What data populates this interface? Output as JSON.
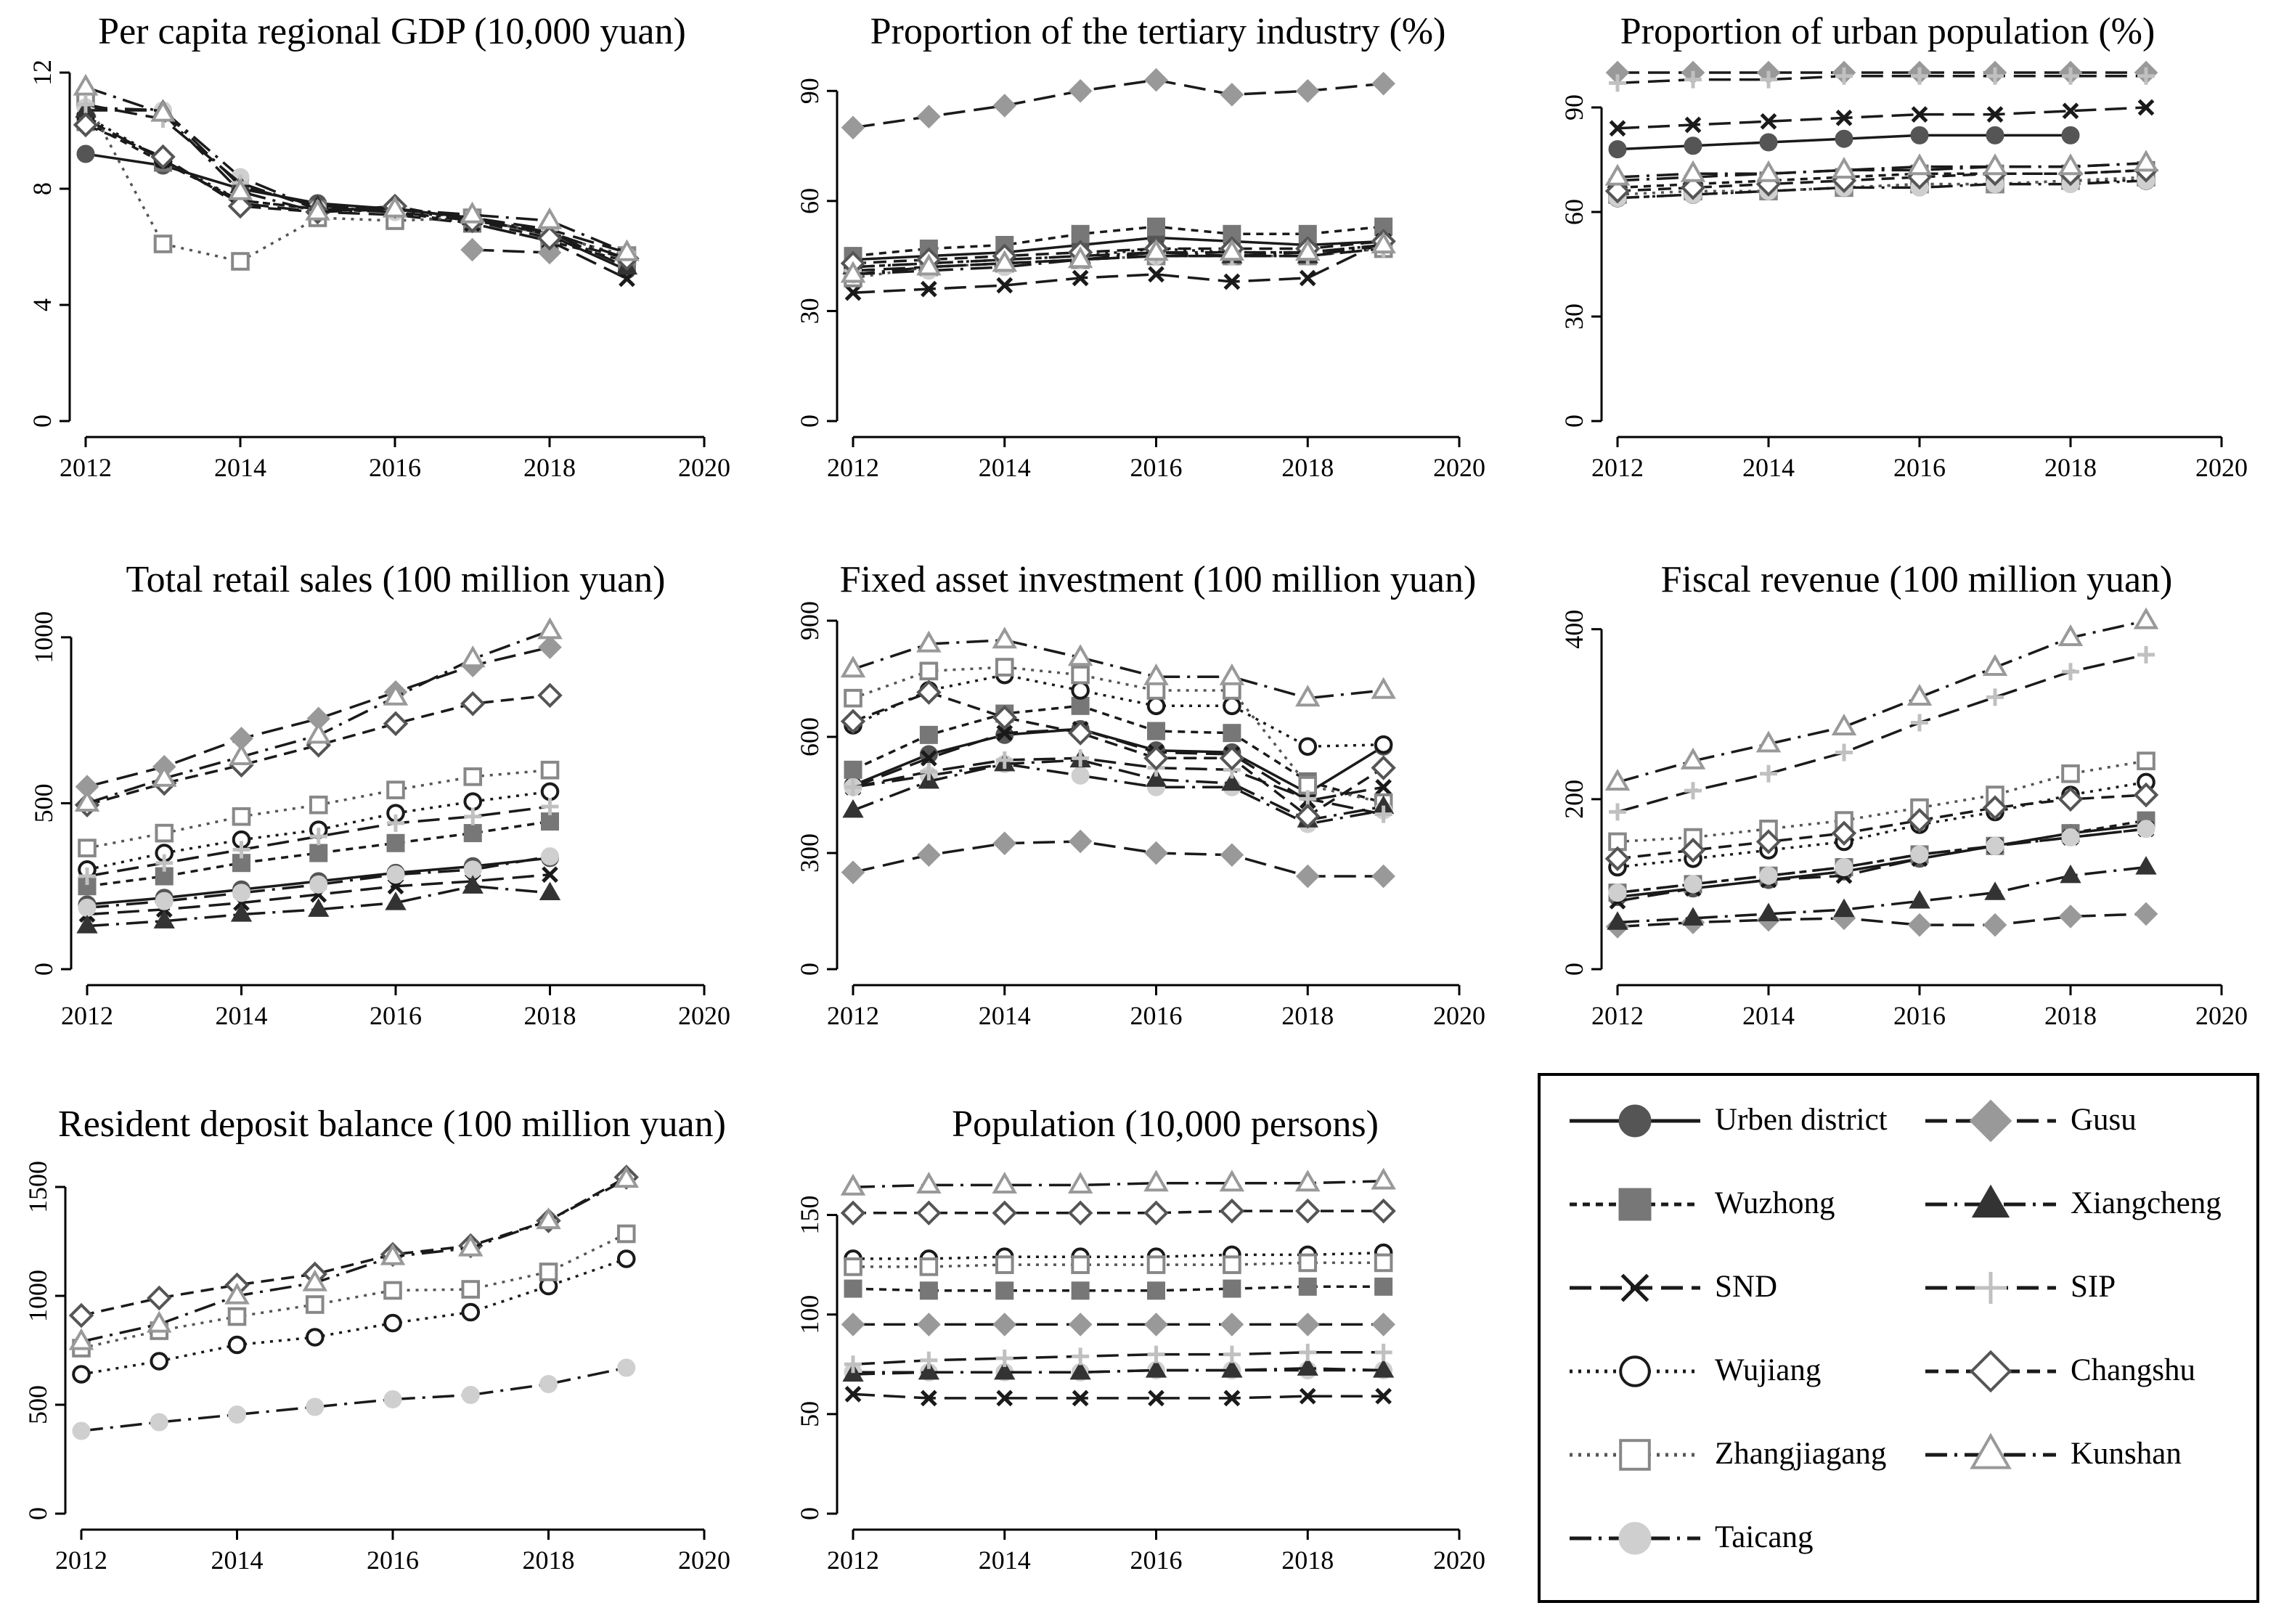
{
  "colors": {
    "black": "#1a1a1a",
    "dark_gray": "#555555",
    "mid_gray": "#777777",
    "light_gray": "#999999",
    "pale_gray": "#cfcfcf"
  },
  "series": [
    {
      "key": "urban",
      "name": "Urben district",
      "marker": "circle-filled",
      "dash": "solid",
      "color": "#555555",
      "line": "#1a1a1a"
    },
    {
      "key": "wuzhong",
      "name": "Wuzhong",
      "marker": "square-filled",
      "dash": "short-dash",
      "color": "#777777",
      "line": "#1a1a1a"
    },
    {
      "key": "snd",
      "name": "SND",
      "marker": "x",
      "dash": "long-dash",
      "color": "#1a1a1a",
      "line": "#1a1a1a"
    },
    {
      "key": "wujiang",
      "name": "Wujiang",
      "marker": "circle-hollow",
      "dash": "dotted",
      "color": "#1a1a1a",
      "line": "#1a1a1a"
    },
    {
      "key": "zhangjiagang",
      "name": "Zhangjiagang",
      "marker": "square-hollow",
      "dash": "dotted",
      "color": "#888888",
      "line": "#555555"
    },
    {
      "key": "taicang",
      "name": "Taicang",
      "marker": "circle-filled",
      "dash": "long-dash-dot",
      "color": "#cfcfcf",
      "line": "#1a1a1a"
    },
    {
      "key": "gusu",
      "name": "Gusu",
      "marker": "diamond-filled",
      "dash": "long-dash",
      "color": "#999999",
      "line": "#1a1a1a"
    },
    {
      "key": "xiangcheng",
      "name": "Xiangcheng",
      "marker": "triangle-filled",
      "dash": "long-dash-dot",
      "color": "#333333",
      "line": "#1a1a1a"
    },
    {
      "key": "sip",
      "name": "SIP",
      "marker": "plus",
      "dash": "long-dash",
      "color": "#c0c0c0",
      "line": "#1a1a1a"
    },
    {
      "key": "changshu",
      "name": "Changshu",
      "marker": "diamond-hollow",
      "dash": "dash",
      "color": "#555555",
      "line": "#1a1a1a"
    },
    {
      "key": "kunshan",
      "name": "Kunshan",
      "marker": "triangle-hollow",
      "dash": "long-dash-dot",
      "color": "#999999",
      "line": "#1a1a1a"
    }
  ],
  "chart_data": [
    {
      "type": "line",
      "title": "Per capita regional GDP (10,000 yuan)",
      "xlim": [
        2012,
        2020
      ],
      "ylim": [
        0,
        12
      ],
      "xticks": [
        2012,
        2014,
        2016,
        2018,
        2020
      ],
      "yticks": [
        0,
        4,
        8,
        12
      ],
      "x": [
        2012,
        2013,
        2014,
        2015,
        2016,
        2017,
        2018,
        2019
      ],
      "series": {
        "urban": [
          9.2,
          8.8,
          8.0,
          7.5,
          7.3,
          7.0,
          6.4,
          5.2
        ],
        "wuzhong": [
          10.3,
          8.9,
          7.6,
          7.3,
          7.2,
          6.8,
          6.2,
          5.5
        ],
        "snd": [
          10.4,
          9.0,
          7.5,
          7.2,
          7.1,
          6.8,
          6.2,
          4.9
        ],
        "wujiang": [
          10.5,
          9.0,
          7.6,
          7.3,
          7.3,
          6.9,
          6.5,
          5.6
        ],
        "zhangjiagang": [
          11.1,
          6.1,
          5.5,
          7.0,
          6.9,
          7.0,
          6.4,
          5.7
        ],
        "taicang": [
          10.8,
          10.7,
          8.4,
          7.3,
          7.2,
          6.9,
          6.5,
          5.6
        ],
        "gusu": [
          null,
          null,
          null,
          null,
          null,
          5.9,
          5.8,
          null
        ],
        "xiangcheng": [
          10.7,
          10.7,
          8.1,
          7.4,
          7.3,
          7.0,
          6.5,
          5.3
        ],
        "sip": [
          10.9,
          10.4,
          8.2,
          7.3,
          7.3,
          7.0,
          6.6,
          5.8
        ],
        "changshu": [
          10.2,
          9.1,
          7.4,
          7.2,
          7.4,
          6.9,
          6.3,
          5.6
        ],
        "kunshan": [
          11.5,
          10.6,
          7.9,
          7.2,
          7.3,
          7.1,
          6.9,
          5.8
        ]
      }
    },
    {
      "type": "line",
      "title": "Proportion of the tertiary industry (%)",
      "xlim": [
        2012,
        2020
      ],
      "ylim": [
        0,
        95
      ],
      "xticks": [
        2012,
        2014,
        2016,
        2018,
        2020
      ],
      "yticks": [
        0,
        30,
        60,
        90
      ],
      "x": [
        2012,
        2013,
        2014,
        2015,
        2016,
        2017,
        2018,
        2019
      ],
      "series": {
        "urban": [
          44,
          45,
          46,
          48,
          50,
          49,
          48,
          49
        ],
        "wuzhong": [
          45,
          47,
          48,
          51,
          53,
          51,
          51,
          53
        ],
        "snd": [
          35,
          36,
          37,
          39,
          40,
          38,
          39,
          49
        ],
        "wujiang": [
          42,
          43,
          44,
          45,
          47,
          46,
          46,
          48
        ],
        "zhangjiagang": [
          39,
          42,
          43,
          44,
          45,
          45,
          45,
          47
        ],
        "taicang": [
          40,
          41,
          42,
          44,
          45,
          45,
          46,
          48
        ],
        "gusu": [
          80,
          83,
          86,
          90,
          93,
          89,
          90,
          92
        ],
        "xiangcheng": [
          42,
          43,
          44,
          45,
          46,
          45,
          45,
          48
        ],
        "sip": [
          41,
          42,
          43,
          44,
          45,
          45,
          45,
          47
        ],
        "changshu": [
          43,
          44,
          45,
          46,
          47,
          47,
          47,
          49
        ],
        "kunshan": [
          40,
          42,
          43,
          44,
          46,
          46,
          46,
          48
        ]
      }
    },
    {
      "type": "line",
      "title": "Proportion of urban population (%)",
      "xlim": [
        2012,
        2020
      ],
      "ylim": [
        0,
        100
      ],
      "xticks": [
        2012,
        2014,
        2016,
        2018,
        2020
      ],
      "yticks": [
        0,
        30,
        60,
        90
      ],
      "x": [
        2012,
        2013,
        2014,
        2015,
        2016,
        2017,
        2018,
        2019
      ],
      "series": {
        "urban": [
          78,
          79,
          80,
          81,
          82,
          82,
          82,
          null
        ],
        "wuzhong": [
          67,
          68,
          69,
          70,
          71,
          71,
          71,
          72
        ],
        "snd": [
          84,
          85,
          86,
          87,
          88,
          88,
          89,
          90
        ],
        "wujiang": [
          64,
          65,
          66,
          67,
          68,
          68,
          69,
          69
        ],
        "zhangjiagang": [
          65,
          66,
          66,
          67,
          68,
          68,
          69,
          70
        ],
        "taicang": [
          64,
          65,
          66,
          67,
          67,
          68,
          68,
          69
        ],
        "gusu": [
          100,
          100,
          100,
          100,
          100,
          100,
          100,
          100
        ],
        "xiangcheng": [
          69,
          70,
          71,
          72,
          72,
          73,
          73,
          74
        ],
        "sip": [
          97,
          98,
          98,
          99,
          99,
          99,
          99,
          99
        ],
        "changshu": [
          66,
          67,
          68,
          69,
          70,
          71,
          71,
          72
        ],
        "kunshan": [
          70,
          71,
          71,
          72,
          73,
          73,
          73,
          74
        ]
      }
    },
    {
      "type": "line",
      "title": "Total retail sales (100 million yuan)",
      "xlim": [
        2012,
        2020
      ],
      "ylim": [
        0,
        1050
      ],
      "xticks": [
        2012,
        2014,
        2016,
        2018,
        2020
      ],
      "yticks": [
        0,
        500,
        1000
      ],
      "x": [
        2012,
        2013,
        2014,
        2015,
        2016,
        2017,
        2018
      ],
      "series": {
        "urban": [
          195,
          215,
          240,
          265,
          290,
          310,
          335
        ],
        "wuzhong": [
          250,
          280,
          320,
          350,
          380,
          410,
          445
        ],
        "snd": [
          165,
          180,
          200,
          225,
          250,
          265,
          285
        ],
        "wujiang": [
          300,
          350,
          390,
          420,
          470,
          505,
          535
        ],
        "zhangjiagang": [
          365,
          410,
          460,
          495,
          540,
          580,
          600
        ],
        "taicang": [
          185,
          205,
          230,
          255,
          285,
          300,
          340
        ],
        "gusu": [
          550,
          610,
          695,
          755,
          835,
          915,
          970
        ],
        "xiangcheng": [
          130,
          145,
          165,
          180,
          200,
          250,
          230
        ],
        "sip": [
          280,
          320,
          360,
          400,
          440,
          460,
          490
        ],
        "changshu": [
          495,
          560,
          615,
          675,
          740,
          800,
          825
        ],
        "kunshan": [
          500,
          575,
          640,
          705,
          820,
          935,
          1020
        ]
      }
    },
    {
      "type": "line",
      "title": "Fixed asset investment (100 million yuan)",
      "xlim": [
        2012,
        2020
      ],
      "ylim": [
        0,
        900
      ],
      "xticks": [
        2012,
        2014,
        2016,
        2018,
        2020
      ],
      "yticks": [
        0,
        300,
        600,
        900
      ],
      "x": [
        2012,
        2013,
        2014,
        2015,
        2016,
        2017,
        2018,
        2019
      ],
      "series": {
        "urban": [
          475,
          555,
          605,
          620,
          565,
          560,
          455,
          575
        ],
        "wuzhong": [
          515,
          605,
          660,
          680,
          615,
          610,
          485,
          430
        ],
        "snd": [
          470,
          545,
          610,
          620,
          560,
          555,
          435,
          470
        ],
        "wujiang": [
          630,
          720,
          760,
          720,
          680,
          680,
          575,
          580
        ],
        "zhangjiagang": [
          700,
          770,
          780,
          760,
          720,
          720,
          475,
          430
        ],
        "taicang": [
          470,
          500,
          530,
          500,
          470,
          470,
          375,
          410
        ],
        "gusu": [
          250,
          295,
          325,
          330,
          300,
          295,
          240,
          240
        ],
        "xiangcheng": [
          410,
          485,
          530,
          540,
          490,
          480,
          385,
          420
        ],
        "sip": [
          470,
          510,
          540,
          545,
          520,
          515,
          440,
          400
        ],
        "changshu": [
          640,
          715,
          650,
          610,
          545,
          545,
          395,
          520
        ],
        "kunshan": [
          775,
          840,
          850,
          805,
          755,
          755,
          700,
          720
        ]
      }
    },
    {
      "type": "line",
      "title": "Fiscal revenue (100 million yuan)",
      "xlim": [
        2012,
        2020
      ],
      "ylim": [
        0,
        410
      ],
      "xticks": [
        2012,
        2014,
        2016,
        2018,
        2020
      ],
      "yticks": [
        0,
        200,
        400
      ],
      "x": [
        2012,
        2013,
        2014,
        2015,
        2016,
        2017,
        2018,
        2019
      ],
      "series": {
        "urban": [
          85,
          95,
          105,
          115,
          130,
          145,
          160,
          170
        ],
        "wuzhong": [
          90,
          100,
          110,
          120,
          135,
          145,
          160,
          175
        ],
        "snd": [
          80,
          95,
          105,
          110,
          130,
          145,
          155,
          165
        ],
        "wujiang": [
          120,
          130,
          140,
          150,
          170,
          185,
          205,
          220
        ],
        "zhangjiagang": [
          150,
          155,
          165,
          175,
          190,
          205,
          230,
          245
        ],
        "taicang": [
          90,
          100,
          110,
          120,
          135,
          145,
          155,
          165
        ],
        "gusu": [
          50,
          55,
          58,
          60,
          52,
          52,
          62,
          65
        ],
        "xiangcheng": [
          55,
          60,
          65,
          70,
          80,
          90,
          110,
          120
        ],
        "sip": [
          185,
          210,
          230,
          255,
          290,
          320,
          350,
          370
        ],
        "changshu": [
          130,
          140,
          150,
          160,
          175,
          190,
          200,
          205
        ],
        "kunshan": [
          220,
          245,
          265,
          285,
          320,
          355,
          390,
          410
        ]
      }
    },
    {
      "type": "line",
      "title": "Resident deposit balance (100 million yuan)",
      "xlim": [
        2012,
        2020
      ],
      "ylim": [
        0,
        1600
      ],
      "xticks": [
        2012,
        2014,
        2016,
        2018,
        2020
      ],
      "yticks": [
        0,
        500,
        1000,
        1500
      ],
      "x": [
        2012,
        2013,
        2014,
        2015,
        2016,
        2017,
        2018,
        2019
      ],
      "series": {
        "urban": [
          null,
          null,
          null,
          null,
          null,
          null,
          null,
          null
        ],
        "wuzhong": [
          null,
          null,
          null,
          null,
          null,
          null,
          null,
          null
        ],
        "snd": [
          null,
          null,
          null,
          null,
          null,
          null,
          null,
          null
        ],
        "wujiang": [
          640,
          700,
          775,
          810,
          875,
          925,
          1045,
          1170
        ],
        "zhangjiagang": [
          760,
          840,
          905,
          960,
          1025,
          1030,
          1110,
          1285
        ],
        "taicang": [
          380,
          420,
          455,
          490,
          525,
          545,
          595,
          670
        ],
        "gusu": [
          null,
          null,
          null,
          null,
          null,
          null,
          null,
          null
        ],
        "xiangcheng": [
          null,
          null,
          null,
          null,
          null,
          null,
          null,
          null
        ],
        "sip": [
          null,
          null,
          null,
          null,
          null,
          null,
          null,
          null
        ],
        "changshu": [
          910,
          990,
          1050,
          1100,
          1190,
          1230,
          1345,
          1545
        ],
        "kunshan": [
          790,
          870,
          1000,
          1060,
          1180,
          1220,
          1345,
          1535
        ]
      }
    },
    {
      "type": "line",
      "title": "Population (10,000 persons)",
      "xlim": [
        2012,
        2020
      ],
      "ylim": [
        0,
        175
      ],
      "xticks": [
        2012,
        2014,
        2016,
        2018,
        2020
      ],
      "yticks": [
        0,
        50,
        100,
        150
      ],
      "x": [
        2012,
        2013,
        2014,
        2015,
        2016,
        2017,
        2018,
        2019
      ],
      "series": {
        "urban": [
          null,
          null,
          null,
          null,
          null,
          null,
          null,
          null
        ],
        "wuzhong": [
          113,
          112,
          112,
          112,
          112,
          113,
          114,
          114
        ],
        "snd": [
          60,
          58,
          58,
          58,
          58,
          58,
          59,
          59
        ],
        "wujiang": [
          128,
          128,
          129,
          129,
          129,
          130,
          130,
          131
        ],
        "zhangjiagang": [
          124,
          124,
          125,
          125,
          125,
          125,
          126,
          126
        ],
        "taicang": [
          71,
          71,
          71,
          71,
          72,
          72,
          72,
          72
        ],
        "gusu": [
          95,
          95,
          95,
          95,
          95,
          95,
          95,
          95
        ],
        "xiangcheng": [
          70,
          71,
          71,
          71,
          72,
          72,
          73,
          72
        ],
        "sip": [
          75,
          77,
          78,
          79,
          80,
          80,
          81,
          81
        ],
        "changshu": [
          151,
          151,
          151,
          151,
          151,
          152,
          152,
          152
        ],
        "kunshan": [
          164,
          165,
          165,
          165,
          166,
          166,
          166,
          167
        ]
      }
    }
  ]
}
